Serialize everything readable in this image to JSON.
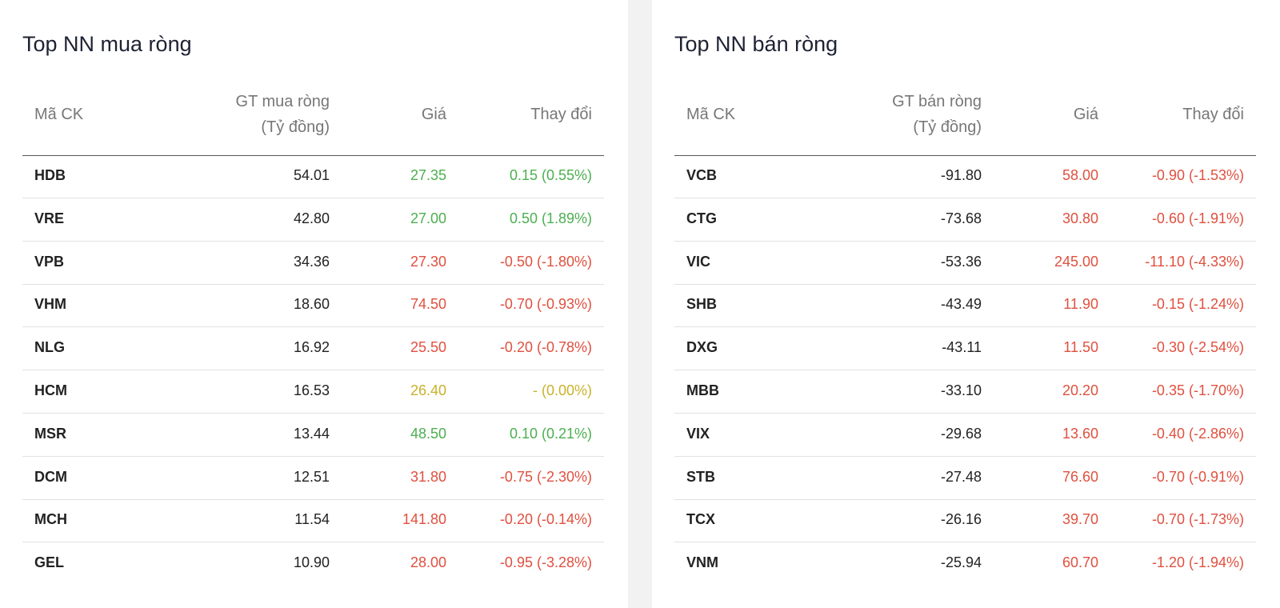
{
  "panels": [
    {
      "title": "Top NN mua ròng",
      "headers": [
        [
          "Mã CK"
        ],
        [
          "GT mua ròng",
          "(Tỷ đồng)"
        ],
        [
          "Giá"
        ],
        [
          "Thay đổi"
        ]
      ],
      "rows": [
        {
          "code": "HDB",
          "value": "54.01",
          "price": "27.35",
          "change": "0.15 (0.55%)",
          "color": "#4caf50"
        },
        {
          "code": "VRE",
          "value": "42.80",
          "price": "27.00",
          "change": "0.50 (1.89%)",
          "color": "#4caf50"
        },
        {
          "code": "VPB",
          "value": "34.36",
          "price": "27.30",
          "change": "-0.50 (-1.80%)",
          "color": "#e0503f"
        },
        {
          "code": "VHM",
          "value": "18.60",
          "price": "74.50",
          "change": "-0.70 (-0.93%)",
          "color": "#e0503f"
        },
        {
          "code": "NLG",
          "value": "16.92",
          "price": "25.50",
          "change": "-0.20 (-0.78%)",
          "color": "#e0503f"
        },
        {
          "code": "HCM",
          "value": "16.53",
          "price": "26.40",
          "change": "- (0.00%)",
          "color": "#c9b22a"
        },
        {
          "code": "MSR",
          "value": "13.44",
          "price": "48.50",
          "change": "0.10 (0.21%)",
          "color": "#4caf50"
        },
        {
          "code": "DCM",
          "value": "12.51",
          "price": "31.80",
          "change": "-0.75 (-2.30%)",
          "color": "#e0503f"
        },
        {
          "code": "MCH",
          "value": "11.54",
          "price": "141.80",
          "change": "-0.20 (-0.14%)",
          "color": "#e0503f"
        },
        {
          "code": "GEL",
          "value": "10.90",
          "price": "28.00",
          "change": "-0.95 (-3.28%)",
          "color": "#e0503f"
        }
      ]
    },
    {
      "title": "Top NN bán ròng",
      "headers": [
        [
          "Mã CK"
        ],
        [
          "GT bán ròng",
          "(Tỷ đồng)"
        ],
        [
          "Giá"
        ],
        [
          "Thay đổi"
        ]
      ],
      "rows": [
        {
          "code": "VCB",
          "value": "-91.80",
          "price": "58.00",
          "change": "-0.90 (-1.53%)",
          "color": "#e0503f"
        },
        {
          "code": "CTG",
          "value": "-73.68",
          "price": "30.80",
          "change": "-0.60 (-1.91%)",
          "color": "#e0503f"
        },
        {
          "code": "VIC",
          "value": "-53.36",
          "price": "245.00",
          "change": "-11.10 (-4.33%)",
          "color": "#e0503f"
        },
        {
          "code": "SHB",
          "value": "-43.49",
          "price": "11.90",
          "change": "-0.15 (-1.24%)",
          "color": "#e0503f"
        },
        {
          "code": "DXG",
          "value": "-43.11",
          "price": "11.50",
          "change": "-0.30 (-2.54%)",
          "color": "#e0503f"
        },
        {
          "code": "MBB",
          "value": "-33.10",
          "price": "20.20",
          "change": "-0.35 (-1.70%)",
          "color": "#e0503f"
        },
        {
          "code": "VIX",
          "value": "-29.68",
          "price": "13.60",
          "change": "-0.40 (-2.86%)",
          "color": "#e0503f"
        },
        {
          "code": "STB",
          "value": "-27.48",
          "price": "76.60",
          "change": "-0.70 (-0.91%)",
          "color": "#e0503f"
        },
        {
          "code": "TCX",
          "value": "-26.16",
          "price": "39.70",
          "change": "-0.70 (-1.73%)",
          "color": "#e0503f"
        },
        {
          "code": "VNM",
          "value": "-25.94",
          "price": "60.70",
          "change": "-1.20 (-1.94%)",
          "color": "#e0503f"
        }
      ]
    }
  ]
}
